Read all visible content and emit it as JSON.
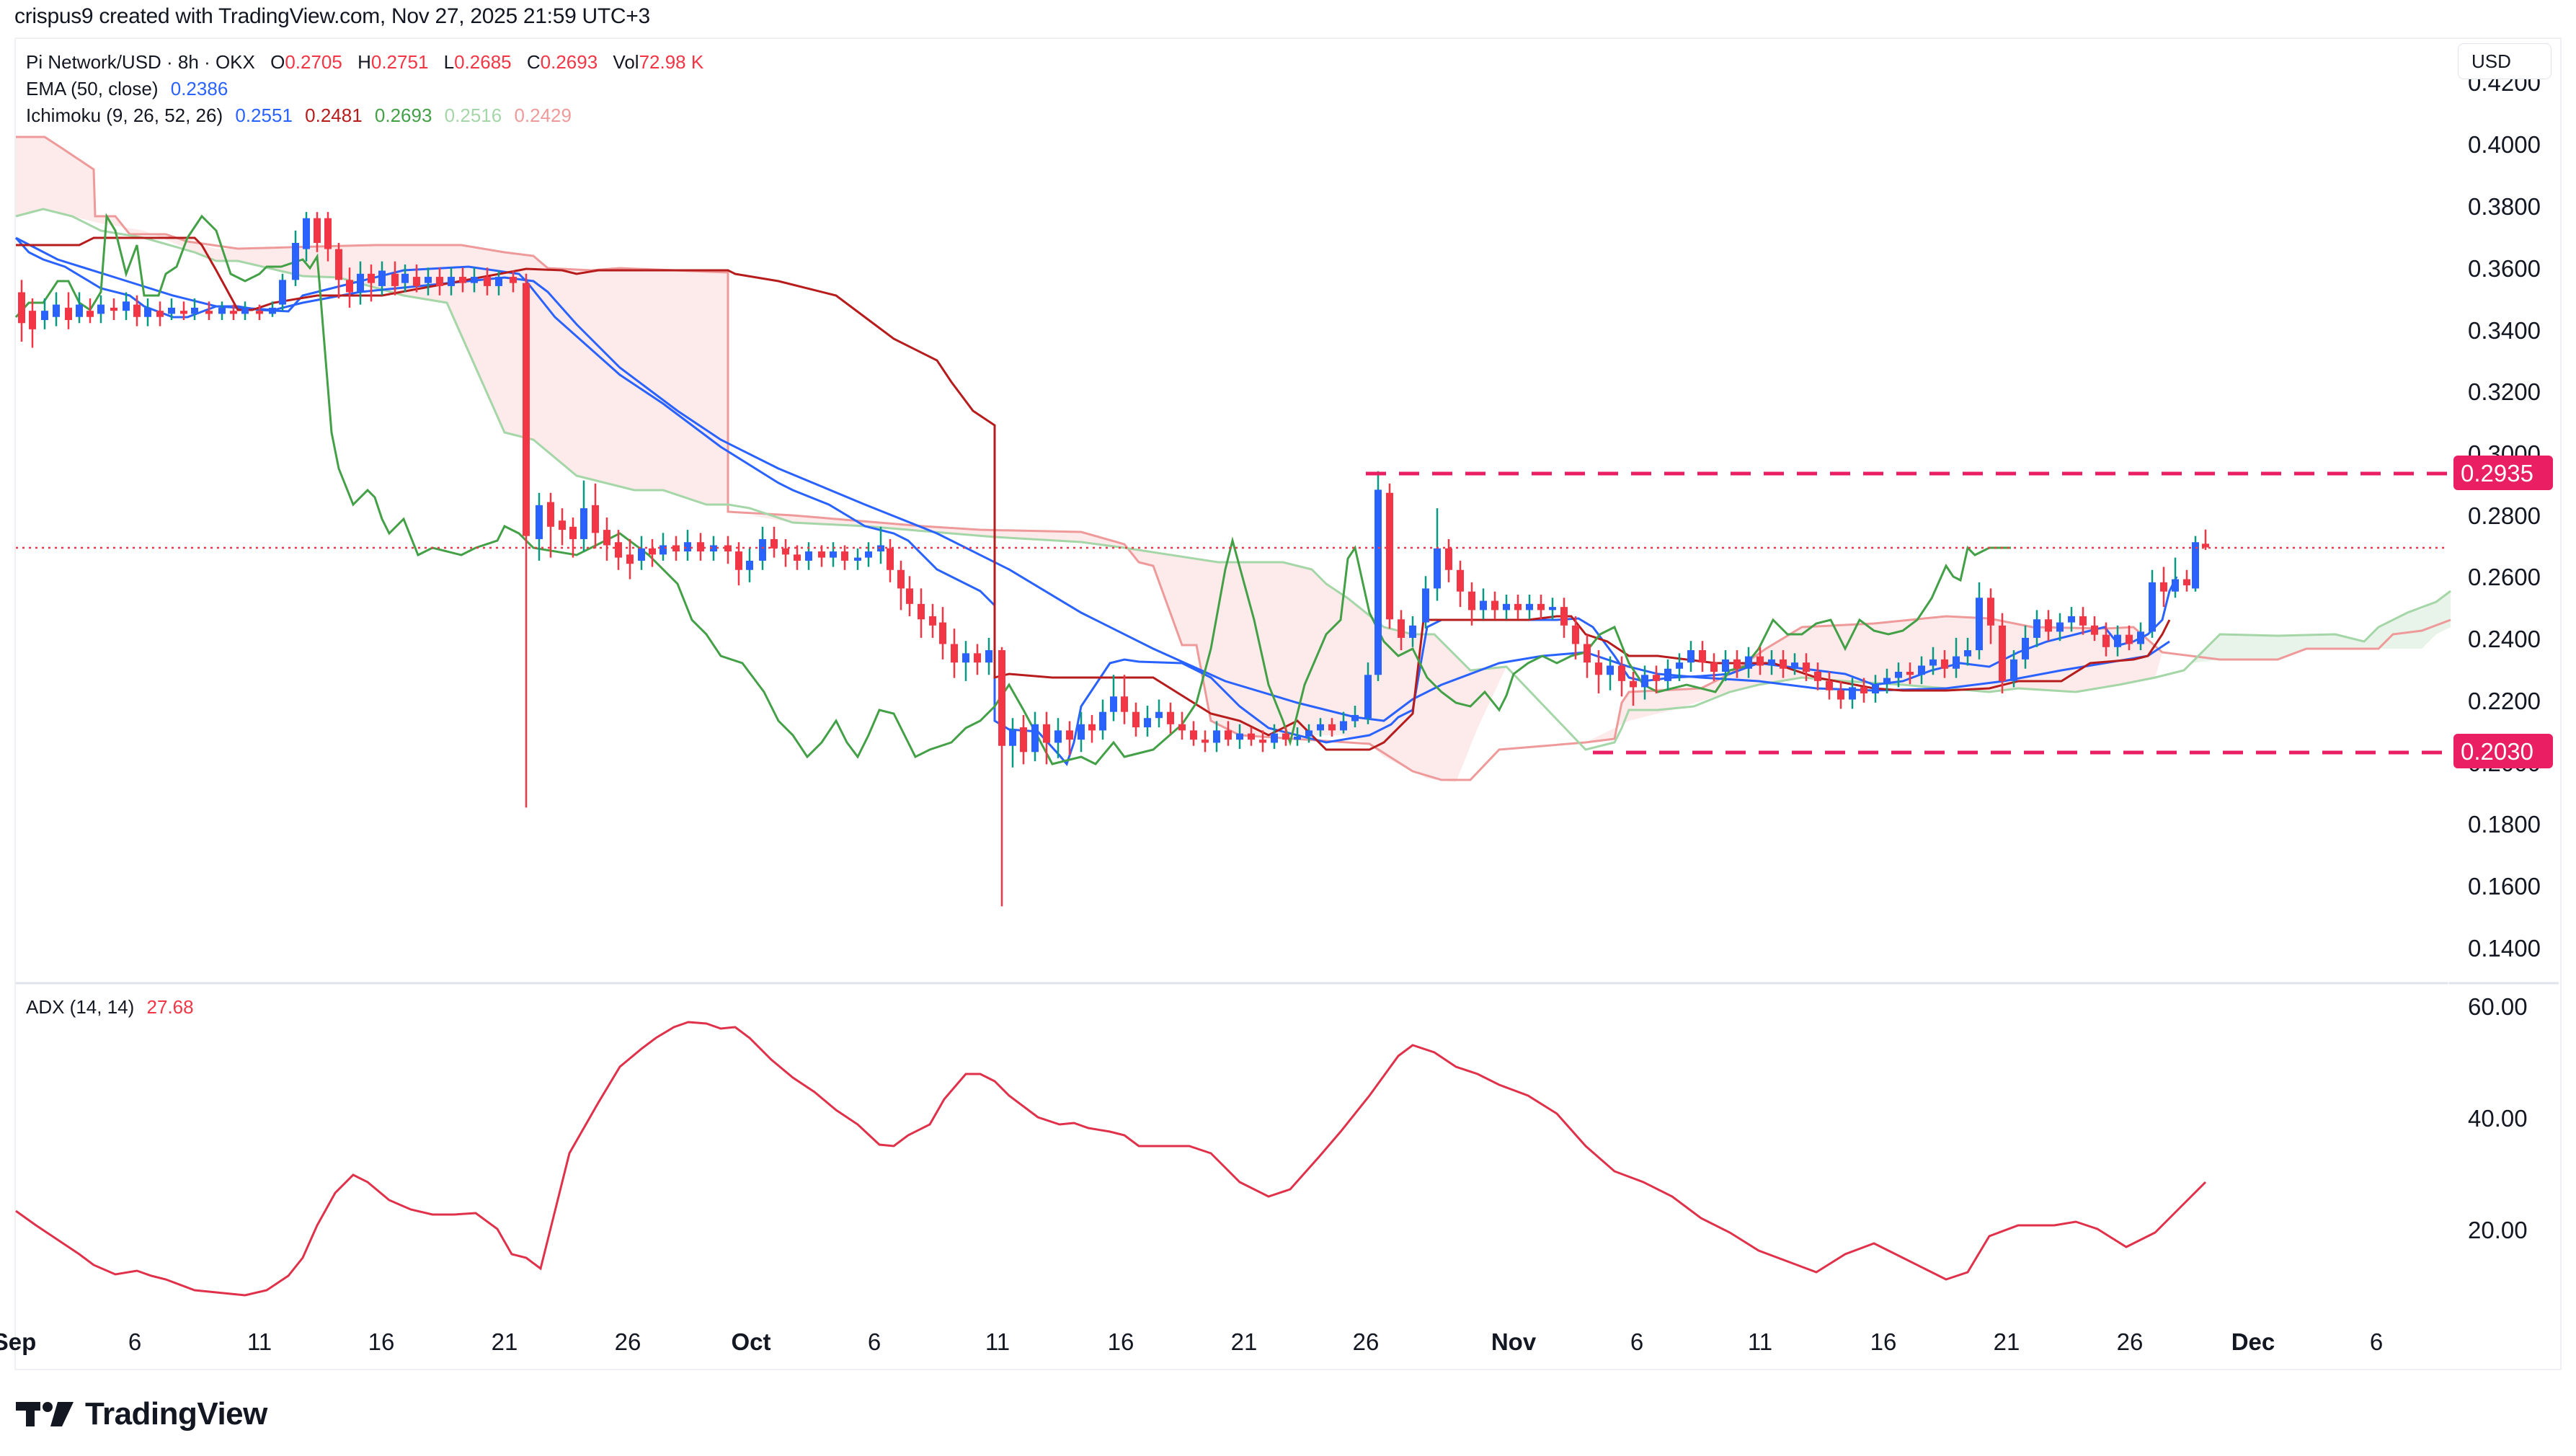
{
  "attribution": "crispus9 created with TradingView.com, Nov 27, 2025 21:59 UTC+3",
  "legend": {
    "symbol": "Pi Network/USD · 8h · OKX",
    "ohlc": [
      {
        "key": "O",
        "value": "0.2705"
      },
      {
        "key": "H",
        "value": "0.2751"
      },
      {
        "key": "L",
        "value": "0.2685"
      },
      {
        "key": "C",
        "value": "0.2693"
      },
      {
        "key": "Vol",
        "value": "72.98 K"
      }
    ],
    "ema": {
      "label": "EMA (50, close)",
      "value": "0.2386"
    },
    "ichimoku": {
      "label": "Ichimoku (9, 26, 52, 26)",
      "values": [
        "0.2551",
        "0.2481",
        "0.2693",
        "0.2516",
        "0.2429"
      ]
    }
  },
  "adx_legend": {
    "label": "ADX (14, 14)",
    "value": "27.68"
  },
  "currency_button": "USD",
  "price_axis": [
    "0.4200",
    "0.4000",
    "0.3800",
    "0.3600",
    "0.3400",
    "0.3200",
    "0.3000",
    "0.2800",
    "0.2600",
    "0.2400",
    "0.2200",
    "0.2000",
    "0.1800",
    "0.1600",
    "0.1400"
  ],
  "adx_axis": [
    "60.00",
    "40.00",
    "20.00"
  ],
  "time_axis": [
    "Sep",
    "6",
    "11",
    "16",
    "21",
    "26",
    "Oct",
    "6",
    "11",
    "16",
    "21",
    "26",
    "Nov",
    "6",
    "11",
    "16",
    "21",
    "26",
    "Dec",
    "6"
  ],
  "price_tags": [
    {
      "value": "0.2935",
      "color": "#e91e63"
    },
    {
      "value": "0.2030",
      "color": "#e91e63"
    }
  ],
  "logo": "TradingView",
  "colors": {
    "up_body": "#2962ff",
    "up_wick": "#089981",
    "down": "#f23645",
    "ema": "#2962ff",
    "tenkan": "#2962ff",
    "kijun": "#b71c1c",
    "chikou": "#43a047",
    "span_a": "#a5d6a7",
    "span_b": "#ef9a9a",
    "adx": "#e0314b",
    "level": "#e91e63"
  },
  "chart_data": [
    {
      "type": "candlestick",
      "title": "Pi Network/USD · 8h · OKX",
      "ylabel": "USD",
      "ylim": [
        0.13,
        0.425
      ],
      "x": [
        "Sep 1",
        "Sep 6",
        "Sep 11",
        "Sep 13",
        "Sep 16",
        "Sep 21",
        "Sep 22",
        "Sep 26",
        "Oct 1",
        "Oct 6",
        "Oct 10",
        "Oct 11",
        "Oct 16",
        "Oct 21",
        "Oct 26",
        "Oct 27",
        "Oct 28",
        "Nov 1",
        "Nov 4",
        "Nov 6",
        "Nov 11",
        "Nov 14",
        "Nov 16",
        "Nov 20",
        "Nov 21",
        "Nov 24",
        "Nov 26",
        "Nov 27"
      ],
      "close_approx": [
        0.348,
        0.346,
        0.348,
        0.37,
        0.355,
        0.355,
        0.272,
        0.27,
        0.267,
        0.262,
        0.232,
        0.205,
        0.212,
        0.203,
        0.212,
        0.292,
        0.25,
        0.248,
        0.23,
        0.222,
        0.23,
        0.218,
        0.228,
        0.25,
        0.243,
        0.24,
        0.258,
        0.2693
      ],
      "last": {
        "open": 0.2705,
        "high": 0.2751,
        "low": 0.2685,
        "close": 0.2693,
        "volume": "72.98K"
      },
      "horizontal_levels": [
        0.2935,
        0.203
      ],
      "current_price_line": 0.2693,
      "indicators": {
        "EMA_50": 0.2386,
        "Ichimoku": {
          "tenkan": 0.2551,
          "kijun": 0.2481,
          "chikou": 0.2693,
          "span_a": 0.2516,
          "span_b": 0.2429
        }
      },
      "xticks": [
        "Sep",
        "6",
        "11",
        "16",
        "21",
        "26",
        "Oct",
        "6",
        "11",
        "16",
        "21",
        "26",
        "Nov",
        "6",
        "11",
        "16",
        "21",
        "26",
        "Dec",
        "6"
      ],
      "yticks": [
        0.42,
        0.4,
        0.38,
        0.36,
        0.34,
        0.32,
        0.3,
        0.28,
        0.26,
        0.24,
        0.22,
        0.2,
        0.18,
        0.16,
        0.14
      ]
    },
    {
      "type": "line",
      "title": "ADX (14, 14)",
      "ylim": [
        5,
        62
      ],
      "x": [
        "Sep 1",
        "Sep 6",
        "Sep 10",
        "Sep 14",
        "Sep 17",
        "Sep 21",
        "Sep 22",
        "Sep 25",
        "Sep 28",
        "Oct 1",
        "Oct 5",
        "Oct 7",
        "Oct 10",
        "Oct 14",
        "Oct 19",
        "Oct 24",
        "Oct 26",
        "Oct 29",
        "Nov 2",
        "Nov 5",
        "Nov 9",
        "Nov 13",
        "Nov 15",
        "Nov 18",
        "Nov 19",
        "Nov 21",
        "Nov 24",
        "Nov 25",
        "Nov 27"
      ],
      "values": [
        24,
        14,
        10,
        26,
        20,
        14,
        13,
        42,
        57,
        56,
        47,
        35,
        48,
        38,
        34,
        28,
        30,
        51,
        45,
        32,
        24,
        14,
        18,
        12,
        10,
        21,
        20,
        17,
        27.68
      ],
      "last_value": 27.68,
      "yticks": [
        60,
        40,
        20
      ]
    }
  ]
}
